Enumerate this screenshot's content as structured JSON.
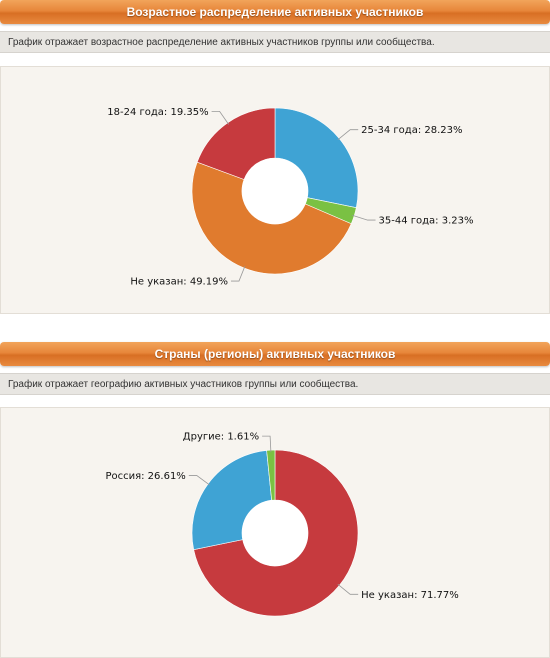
{
  "sections": [
    {
      "title": "Возрастное распределение активных участников",
      "description": "График отражает возрастное распределение активных участников группы или сообщества."
    },
    {
      "title": "Страны (регионы) активных участников",
      "description": "График отражает географию активных участников группы или сообщества."
    }
  ],
  "chart_data": [
    {
      "type": "pie",
      "title": "",
      "donut": true,
      "slices": [
        {
          "name": "25-34 года",
          "value": 28.23,
          "label": "25-34 года: 28.23%",
          "color": "#3fa3d4"
        },
        {
          "name": "35-44 года",
          "value": 3.23,
          "label": "35-44 года: 3.23%",
          "color": "#7ac143"
        },
        {
          "name": "Не указан",
          "value": 49.19,
          "label": "Не указан: 49.19%",
          "color": "#e07b2e"
        },
        {
          "name": "18-24 года",
          "value": 19.35,
          "label": "18-24 года: 19.35%",
          "color": "#c63a3e"
        }
      ]
    },
    {
      "type": "pie",
      "title": "",
      "donut": true,
      "slices": [
        {
          "name": "Не указан",
          "value": 71.77,
          "label": "Не указан: 71.77%",
          "color": "#c63a3e"
        },
        {
          "name": "Россия",
          "value": 26.61,
          "label": "Россия: 26.61%",
          "color": "#3fa3d4"
        },
        {
          "name": "Другие",
          "value": 1.61,
          "label": "Другие: 1.61%",
          "color": "#7ac143"
        }
      ]
    }
  ]
}
